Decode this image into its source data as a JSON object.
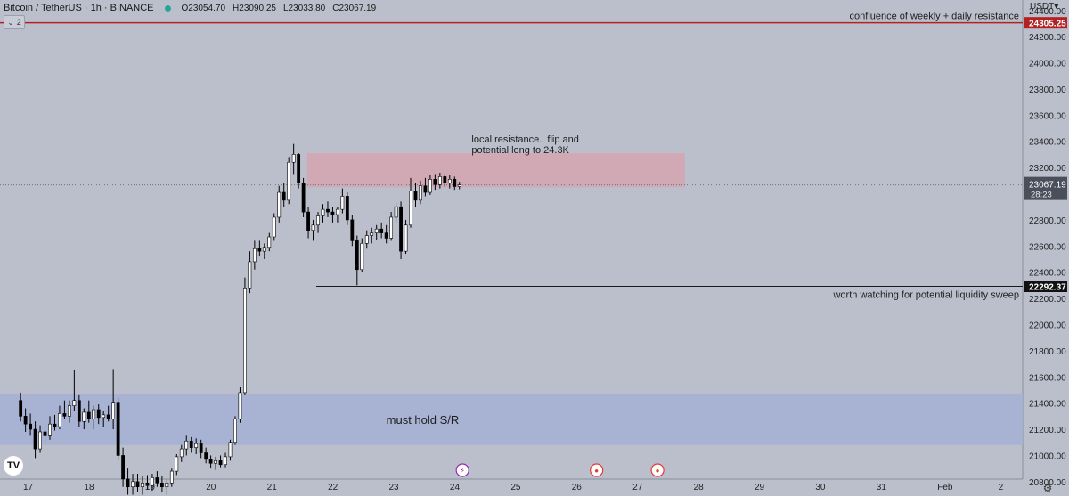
{
  "header": {
    "symbol": "Bitcoin / TetherUS · 1h · BINANCE",
    "open": "O23054.70",
    "high": "H23090.25",
    "low": "L23033.80",
    "close": "C23067.19",
    "indicator_count": "2"
  },
  "axis": {
    "currency": "USDT",
    "tick_labels": [
      "24400.00",
      "24200.00",
      "24000.00",
      "23800.00",
      "23600.00",
      "23400.00",
      "23200.00",
      "22800.00",
      "22600.00",
      "22400.00",
      "22200.00",
      "22000.00",
      "21800.00",
      "21600.00",
      "21400.00",
      "21200.00",
      "21000.00",
      "20800.00"
    ],
    "time_labels": [
      "17",
      "18",
      "19",
      "20",
      "21",
      "22",
      "23",
      "24",
      "25",
      "26",
      "27",
      "28",
      "29",
      "30",
      "31",
      "Feb",
      "2"
    ],
    "current_price": "23067.19",
    "countdown": "28:23",
    "resistance_price": "24305.25",
    "sweep_price": "22292.37"
  },
  "annotations": {
    "resistance_line": "confluence of weekly + daily resistance",
    "local_resistance": "local resistance.. flip and\npotential long to 24.3K",
    "sweep": "worth watching for potential liquidity sweep",
    "support_zone": "must hold S/R"
  },
  "colors": {
    "background": "#bbbfcb",
    "up": "#ffffff",
    "down": "#000000",
    "resistance_line": "#b22222",
    "resistance_zone": "#d7a4ae",
    "support_zone": "#a6b0d4"
  },
  "chart_data": {
    "type": "candlestick",
    "title": "Bitcoin / TetherUS · 1h · BINANCE",
    "ylim": [
      20690,
      24480
    ],
    "x_range_days": [
      17,
      33.4
    ],
    "levels": [
      {
        "name": "confluence of weekly + daily resistance",
        "price": 24305.25
      },
      {
        "name": "worth watching for potential liquidity sweep",
        "price": 22292.37
      }
    ],
    "zones": [
      {
        "label": "local resistance.. flip and potential long to 24.3K",
        "from": 23050,
        "to": 23310
      },
      {
        "label": "must hold S/R",
        "from": 21080,
        "to": 21470
      }
    ],
    "candles": [
      {
        "t": 16.9,
        "o": 21420,
        "h": 21480,
        "l": 21260,
        "c": 21300
      },
      {
        "t": 16.98,
        "o": 21300,
        "h": 21360,
        "l": 21180,
        "c": 21240
      },
      {
        "t": 17.06,
        "o": 21240,
        "h": 21320,
        "l": 21150,
        "c": 21200
      },
      {
        "t": 17.14,
        "o": 21200,
        "h": 21260,
        "l": 20980,
        "c": 21050
      },
      {
        "t": 17.22,
        "o": 21050,
        "h": 21230,
        "l": 21020,
        "c": 21180
      },
      {
        "t": 17.3,
        "o": 21180,
        "h": 21260,
        "l": 21090,
        "c": 21150
      },
      {
        "t": 17.38,
        "o": 21150,
        "h": 21300,
        "l": 21120,
        "c": 21240
      },
      {
        "t": 17.46,
        "o": 21240,
        "h": 21310,
        "l": 21190,
        "c": 21220
      },
      {
        "t": 17.54,
        "o": 21220,
        "h": 21380,
        "l": 21200,
        "c": 21320
      },
      {
        "t": 17.62,
        "o": 21320,
        "h": 21420,
        "l": 21280,
        "c": 21300
      },
      {
        "t": 17.7,
        "o": 21300,
        "h": 21420,
        "l": 21250,
        "c": 21380
      },
      {
        "t": 17.78,
        "o": 21380,
        "h": 21650,
        "l": 21340,
        "c": 21420
      },
      {
        "t": 17.86,
        "o": 21420,
        "h": 21460,
        "l": 21220,
        "c": 21260
      },
      {
        "t": 17.94,
        "o": 21260,
        "h": 21360,
        "l": 21200,
        "c": 21330
      },
      {
        "t": 18.02,
        "o": 21330,
        "h": 21420,
        "l": 21250,
        "c": 21280
      },
      {
        "t": 18.1,
        "o": 21280,
        "h": 21380,
        "l": 21200,
        "c": 21350
      },
      {
        "t": 18.18,
        "o": 21350,
        "h": 21390,
        "l": 21240,
        "c": 21290
      },
      {
        "t": 18.26,
        "o": 21290,
        "h": 21340,
        "l": 21220,
        "c": 21310
      },
      {
        "t": 18.34,
        "o": 21310,
        "h": 21380,
        "l": 21260,
        "c": 21280
      },
      {
        "t": 18.42,
        "o": 21280,
        "h": 21660,
        "l": 21200,
        "c": 21400
      },
      {
        "t": 18.5,
        "o": 21400,
        "h": 21440,
        "l": 20960,
        "c": 21000
      },
      {
        "t": 18.58,
        "o": 21000,
        "h": 21060,
        "l": 20760,
        "c": 20820
      },
      {
        "t": 18.66,
        "o": 20820,
        "h": 20900,
        "l": 20700,
        "c": 20760
      },
      {
        "t": 18.74,
        "o": 20760,
        "h": 20860,
        "l": 20700,
        "c": 20800
      },
      {
        "t": 18.82,
        "o": 20800,
        "h": 20860,
        "l": 20720,
        "c": 20760
      },
      {
        "t": 18.9,
        "o": 20760,
        "h": 20840,
        "l": 20700,
        "c": 20790
      },
      {
        "t": 18.98,
        "o": 20790,
        "h": 20850,
        "l": 20740,
        "c": 20770
      },
      {
        "t": 19.06,
        "o": 20770,
        "h": 20860,
        "l": 20730,
        "c": 20830
      },
      {
        "t": 19.14,
        "o": 20830,
        "h": 20880,
        "l": 20760,
        "c": 20790
      },
      {
        "t": 19.22,
        "o": 20790,
        "h": 20840,
        "l": 20720,
        "c": 20760
      },
      {
        "t": 19.3,
        "o": 20760,
        "h": 20820,
        "l": 20700,
        "c": 20790
      },
      {
        "t": 19.38,
        "o": 20790,
        "h": 20900,
        "l": 20760,
        "c": 20880
      },
      {
        "t": 19.46,
        "o": 20880,
        "h": 21010,
        "l": 20850,
        "c": 20990
      },
      {
        "t": 19.54,
        "o": 20990,
        "h": 21080,
        "l": 20950,
        "c": 21050
      },
      {
        "t": 19.62,
        "o": 21050,
        "h": 21150,
        "l": 21000,
        "c": 21110
      },
      {
        "t": 19.7,
        "o": 21110,
        "h": 21140,
        "l": 21020,
        "c": 21060
      },
      {
        "t": 19.78,
        "o": 21060,
        "h": 21130,
        "l": 21010,
        "c": 21090
      },
      {
        "t": 19.86,
        "o": 21090,
        "h": 21120,
        "l": 20980,
        "c": 21020
      },
      {
        "t": 19.94,
        "o": 21020,
        "h": 21060,
        "l": 20940,
        "c": 20970
      },
      {
        "t": 20.02,
        "o": 20970,
        "h": 21000,
        "l": 20900,
        "c": 20940
      },
      {
        "t": 20.1,
        "o": 20940,
        "h": 20990,
        "l": 20890,
        "c": 20960
      },
      {
        "t": 20.18,
        "o": 20960,
        "h": 21000,
        "l": 20910,
        "c": 20930
      },
      {
        "t": 20.26,
        "o": 20930,
        "h": 21020,
        "l": 20910,
        "c": 20990
      },
      {
        "t": 20.34,
        "o": 20990,
        "h": 21120,
        "l": 20960,
        "c": 21100
      },
      {
        "t": 20.42,
        "o": 21100,
        "h": 21300,
        "l": 21080,
        "c": 21280
      },
      {
        "t": 20.5,
        "o": 21280,
        "h": 21520,
        "l": 21250,
        "c": 21480
      },
      {
        "t": 20.58,
        "o": 21480,
        "h": 22360,
        "l": 21460,
        "c": 22280
      },
      {
        "t": 20.66,
        "o": 22280,
        "h": 22560,
        "l": 22240,
        "c": 22480
      },
      {
        "t": 20.74,
        "o": 22480,
        "h": 22640,
        "l": 22420,
        "c": 22580
      },
      {
        "t": 20.82,
        "o": 22580,
        "h": 22640,
        "l": 22520,
        "c": 22560
      },
      {
        "t": 20.9,
        "o": 22560,
        "h": 22620,
        "l": 22500,
        "c": 22590
      },
      {
        "t": 20.98,
        "o": 22590,
        "h": 22700,
        "l": 22560,
        "c": 22670
      },
      {
        "t": 21.06,
        "o": 22670,
        "h": 22850,
        "l": 22640,
        "c": 22820
      },
      {
        "t": 21.14,
        "o": 22820,
        "h": 23060,
        "l": 22780,
        "c": 23010
      },
      {
        "t": 21.22,
        "o": 23010,
        "h": 23080,
        "l": 22900,
        "c": 22950
      },
      {
        "t": 21.3,
        "o": 22950,
        "h": 23280,
        "l": 22920,
        "c": 23240
      },
      {
        "t": 21.38,
        "o": 23240,
        "h": 23380,
        "l": 23150,
        "c": 23300
      },
      {
        "t": 21.46,
        "o": 23300,
        "h": 23310,
        "l": 23040,
        "c": 23080
      },
      {
        "t": 21.54,
        "o": 23080,
        "h": 23120,
        "l": 22820,
        "c": 22860
      },
      {
        "t": 21.62,
        "o": 22860,
        "h": 22900,
        "l": 22660,
        "c": 22720
      },
      {
        "t": 21.7,
        "o": 22720,
        "h": 22800,
        "l": 22640,
        "c": 22760
      },
      {
        "t": 21.78,
        "o": 22760,
        "h": 22860,
        "l": 22700,
        "c": 22830
      },
      {
        "t": 21.86,
        "o": 22830,
        "h": 22920,
        "l": 22780,
        "c": 22880
      },
      {
        "t": 21.94,
        "o": 22880,
        "h": 22940,
        "l": 22820,
        "c": 22860
      },
      {
        "t": 22.02,
        "o": 22860,
        "h": 22900,
        "l": 22780,
        "c": 22840
      },
      {
        "t": 22.1,
        "o": 22840,
        "h": 22900,
        "l": 22780,
        "c": 22880
      },
      {
        "t": 22.18,
        "o": 22880,
        "h": 23040,
        "l": 22850,
        "c": 22980
      },
      {
        "t": 22.26,
        "o": 22980,
        "h": 23010,
        "l": 22760,
        "c": 22800
      },
      {
        "t": 22.34,
        "o": 22800,
        "h": 22840,
        "l": 22600,
        "c": 22640
      },
      {
        "t": 22.42,
        "o": 22640,
        "h": 22680,
        "l": 22300,
        "c": 22420
      },
      {
        "t": 22.5,
        "o": 22420,
        "h": 22660,
        "l": 22400,
        "c": 22620
      },
      {
        "t": 22.58,
        "o": 22620,
        "h": 22720,
        "l": 22580,
        "c": 22680
      },
      {
        "t": 22.66,
        "o": 22680,
        "h": 22740,
        "l": 22620,
        "c": 22700
      },
      {
        "t": 22.74,
        "o": 22700,
        "h": 22760,
        "l": 22650,
        "c": 22730
      },
      {
        "t": 22.82,
        "o": 22730,
        "h": 22780,
        "l": 22660,
        "c": 22700
      },
      {
        "t": 22.9,
        "o": 22700,
        "h": 22760,
        "l": 22620,
        "c": 22660
      },
      {
        "t": 22.98,
        "o": 22660,
        "h": 22860,
        "l": 22640,
        "c": 22820
      },
      {
        "t": 23.06,
        "o": 22820,
        "h": 22930,
        "l": 22780,
        "c": 22900
      },
      {
        "t": 23.14,
        "o": 22900,
        "h": 22940,
        "l": 22500,
        "c": 22560
      },
      {
        "t": 23.22,
        "o": 22560,
        "h": 22800,
        "l": 22540,
        "c": 22760
      },
      {
        "t": 23.3,
        "o": 22760,
        "h": 23120,
        "l": 22740,
        "c": 23020
      },
      {
        "t": 23.38,
        "o": 23020,
        "h": 23080,
        "l": 22900,
        "c": 22950
      },
      {
        "t": 23.46,
        "o": 22950,
        "h": 23100,
        "l": 22920,
        "c": 23060
      },
      {
        "t": 23.54,
        "o": 23060,
        "h": 23120,
        "l": 22980,
        "c": 23010
      },
      {
        "t": 23.62,
        "o": 23010,
        "h": 23140,
        "l": 22990,
        "c": 23110
      },
      {
        "t": 23.7,
        "o": 23110,
        "h": 23150,
        "l": 23030,
        "c": 23070
      },
      {
        "t": 23.78,
        "o": 23070,
        "h": 23160,
        "l": 23040,
        "c": 23130
      },
      {
        "t": 23.86,
        "o": 23130,
        "h": 23150,
        "l": 23050,
        "c": 23080
      },
      {
        "t": 23.94,
        "o": 23080,
        "h": 23140,
        "l": 23040,
        "c": 23110
      },
      {
        "t": 24.02,
        "o": 23110,
        "h": 23130,
        "l": 23030,
        "c": 23054.7
      },
      {
        "t": 24.1,
        "o": 23054.7,
        "h": 23090.25,
        "l": 23033.8,
        "c": 23067.19
      }
    ]
  }
}
